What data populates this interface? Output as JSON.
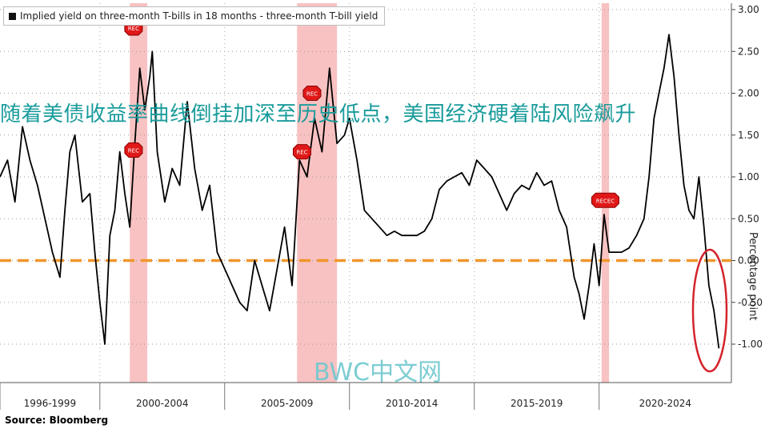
{
  "chart_data": {
    "type": "line",
    "legend": "Implied yield on three-month T-bills in 18 months - three-month T-bill yield",
    "ylabel": "Percentage point",
    "ylim": [
      -1.3,
      3.05
    ],
    "yticks": [
      "3.00",
      "2.50",
      "2.00",
      "1.50",
      "1.00",
      "0.50",
      "0.00",
      "-0.50",
      "-1.00"
    ],
    "ytick_values": [
      3.0,
      2.5,
      2.0,
      1.5,
      1.0,
      0.5,
      0.0,
      -0.5,
      -1.0
    ],
    "xlim": [
      1996.0,
      2025.3
    ],
    "x_sections": [
      {
        "label": "1996-1999",
        "start": 1996.0,
        "end": 2000.0
      },
      {
        "label": "2000-2004",
        "start": 2000.0,
        "end": 2005.0
      },
      {
        "label": "2005-2009",
        "start": 2005.0,
        "end": 2010.0
      },
      {
        "label": "2010-2014",
        "start": 2010.0,
        "end": 2015.0
      },
      {
        "label": "2015-2019",
        "start": 2015.0,
        "end": 2020.0
      },
      {
        "label": "2020-2024",
        "start": 2020.0,
        "end": 2025.3
      }
    ],
    "recessions": [
      {
        "start": 2001.2,
        "end": 2001.9
      },
      {
        "start": 2007.9,
        "end": 2009.5
      },
      {
        "start": 2020.1,
        "end": 2020.4
      }
    ],
    "markers": [
      {
        "label": "REC",
        "x": 2001.35,
        "y": 2.78
      },
      {
        "label": "REC",
        "x": 2001.35,
        "y": 1.32
      },
      {
        "label": "REC",
        "x": 2008.1,
        "y": 1.3
      },
      {
        "label": "REC",
        "x": 2008.5,
        "y": 2.0
      },
      {
        "label": "RECEC",
        "x": 2020.25,
        "y": 0.72
      }
    ],
    "reference_line": {
      "y": 0.0,
      "color": "#f0962a"
    },
    "series": [
      {
        "color": "#000000",
        "x": [
          1996.0,
          1996.3,
          1996.6,
          1996.9,
          1997.2,
          1997.5,
          1997.8,
          1998.1,
          1998.4,
          1998.6,
          1998.8,
          1999.0,
          1999.3,
          1999.6,
          1999.8,
          2000.0,
          2000.2,
          2000.4,
          2000.6,
          2000.8,
          2001.0,
          2001.2,
          2001.4,
          2001.6,
          2001.8,
          2002.0,
          2002.1,
          2002.3,
          2002.6,
          2002.9,
          2003.2,
          2003.5,
          2003.8,
          2004.1,
          2004.4,
          2004.7,
          2005.0,
          2005.3,
          2005.6,
          2005.9,
          2006.2,
          2006.5,
          2006.8,
          2007.1,
          2007.4,
          2007.7,
          2008.0,
          2008.3,
          2008.6,
          2008.9,
          2009.2,
          2009.5,
          2009.8,
          2010.0,
          2010.3,
          2010.6,
          2010.9,
          2011.2,
          2011.5,
          2011.8,
          2012.1,
          2012.4,
          2012.7,
          2013.0,
          2013.3,
          2013.6,
          2013.9,
          2014.2,
          2014.5,
          2014.8,
          2015.1,
          2015.4,
          2015.7,
          2016.0,
          2016.3,
          2016.6,
          2016.9,
          2017.2,
          2017.5,
          2017.8,
          2018.1,
          2018.4,
          2018.7,
          2019.0,
          2019.2,
          2019.4,
          2019.6,
          2019.8,
          2020.0,
          2020.2,
          2020.4,
          2020.6,
          2020.9,
          2021.2,
          2021.5,
          2021.8,
          2022.0,
          2022.2,
          2022.4,
          2022.6,
          2022.8,
          2023.0,
          2023.2,
          2023.4,
          2023.6,
          2023.8,
          2024.0,
          2024.2,
          2024.4,
          2024.6,
          2024.8
        ],
        "y": [
          1.0,
          1.2,
          0.7,
          1.6,
          1.2,
          0.9,
          0.5,
          0.1,
          -0.2,
          0.6,
          1.3,
          1.5,
          0.7,
          0.8,
          0.1,
          -0.5,
          -1.0,
          0.3,
          0.6,
          1.3,
          0.8,
          0.4,
          1.4,
          2.3,
          1.8,
          2.2,
          2.5,
          1.3,
          0.7,
          1.1,
          0.9,
          1.9,
          1.1,
          0.6,
          0.9,
          0.1,
          -0.1,
          -0.3,
          -0.5,
          -0.6,
          0.0,
          -0.3,
          -0.6,
          -0.1,
          0.4,
          -0.3,
          1.2,
          1.0,
          1.7,
          1.3,
          2.3,
          1.4,
          1.5,
          1.7,
          1.2,
          0.6,
          0.5,
          0.4,
          0.3,
          0.35,
          0.3,
          0.3,
          0.3,
          0.35,
          0.5,
          0.85,
          0.95,
          1.0,
          1.05,
          0.9,
          1.2,
          1.1,
          1.0,
          0.8,
          0.6,
          0.8,
          0.9,
          0.85,
          1.05,
          0.9,
          0.95,
          0.6,
          0.4,
          -0.2,
          -0.4,
          -0.7,
          -0.3,
          0.2,
          -0.3,
          0.55,
          0.1,
          0.1,
          0.1,
          0.15,
          0.3,
          0.5,
          1.0,
          1.7,
          2.0,
          2.3,
          2.7,
          2.2,
          1.5,
          0.9,
          0.6,
          0.5,
          1.0,
          0.4,
          -0.3,
          -0.6,
          -1.05
        ]
      }
    ]
  },
  "legend_label": "Implied yield on three-month T-bills in 18 months - three-month T-bill yield",
  "headline": "随着美债收益率曲线倒挂加深至历史低点，美国经济硬着陆风险飙升",
  "watermark": "BWC中文网",
  "source": "Source: Bloomberg",
  "ylabel": "Percentage point"
}
